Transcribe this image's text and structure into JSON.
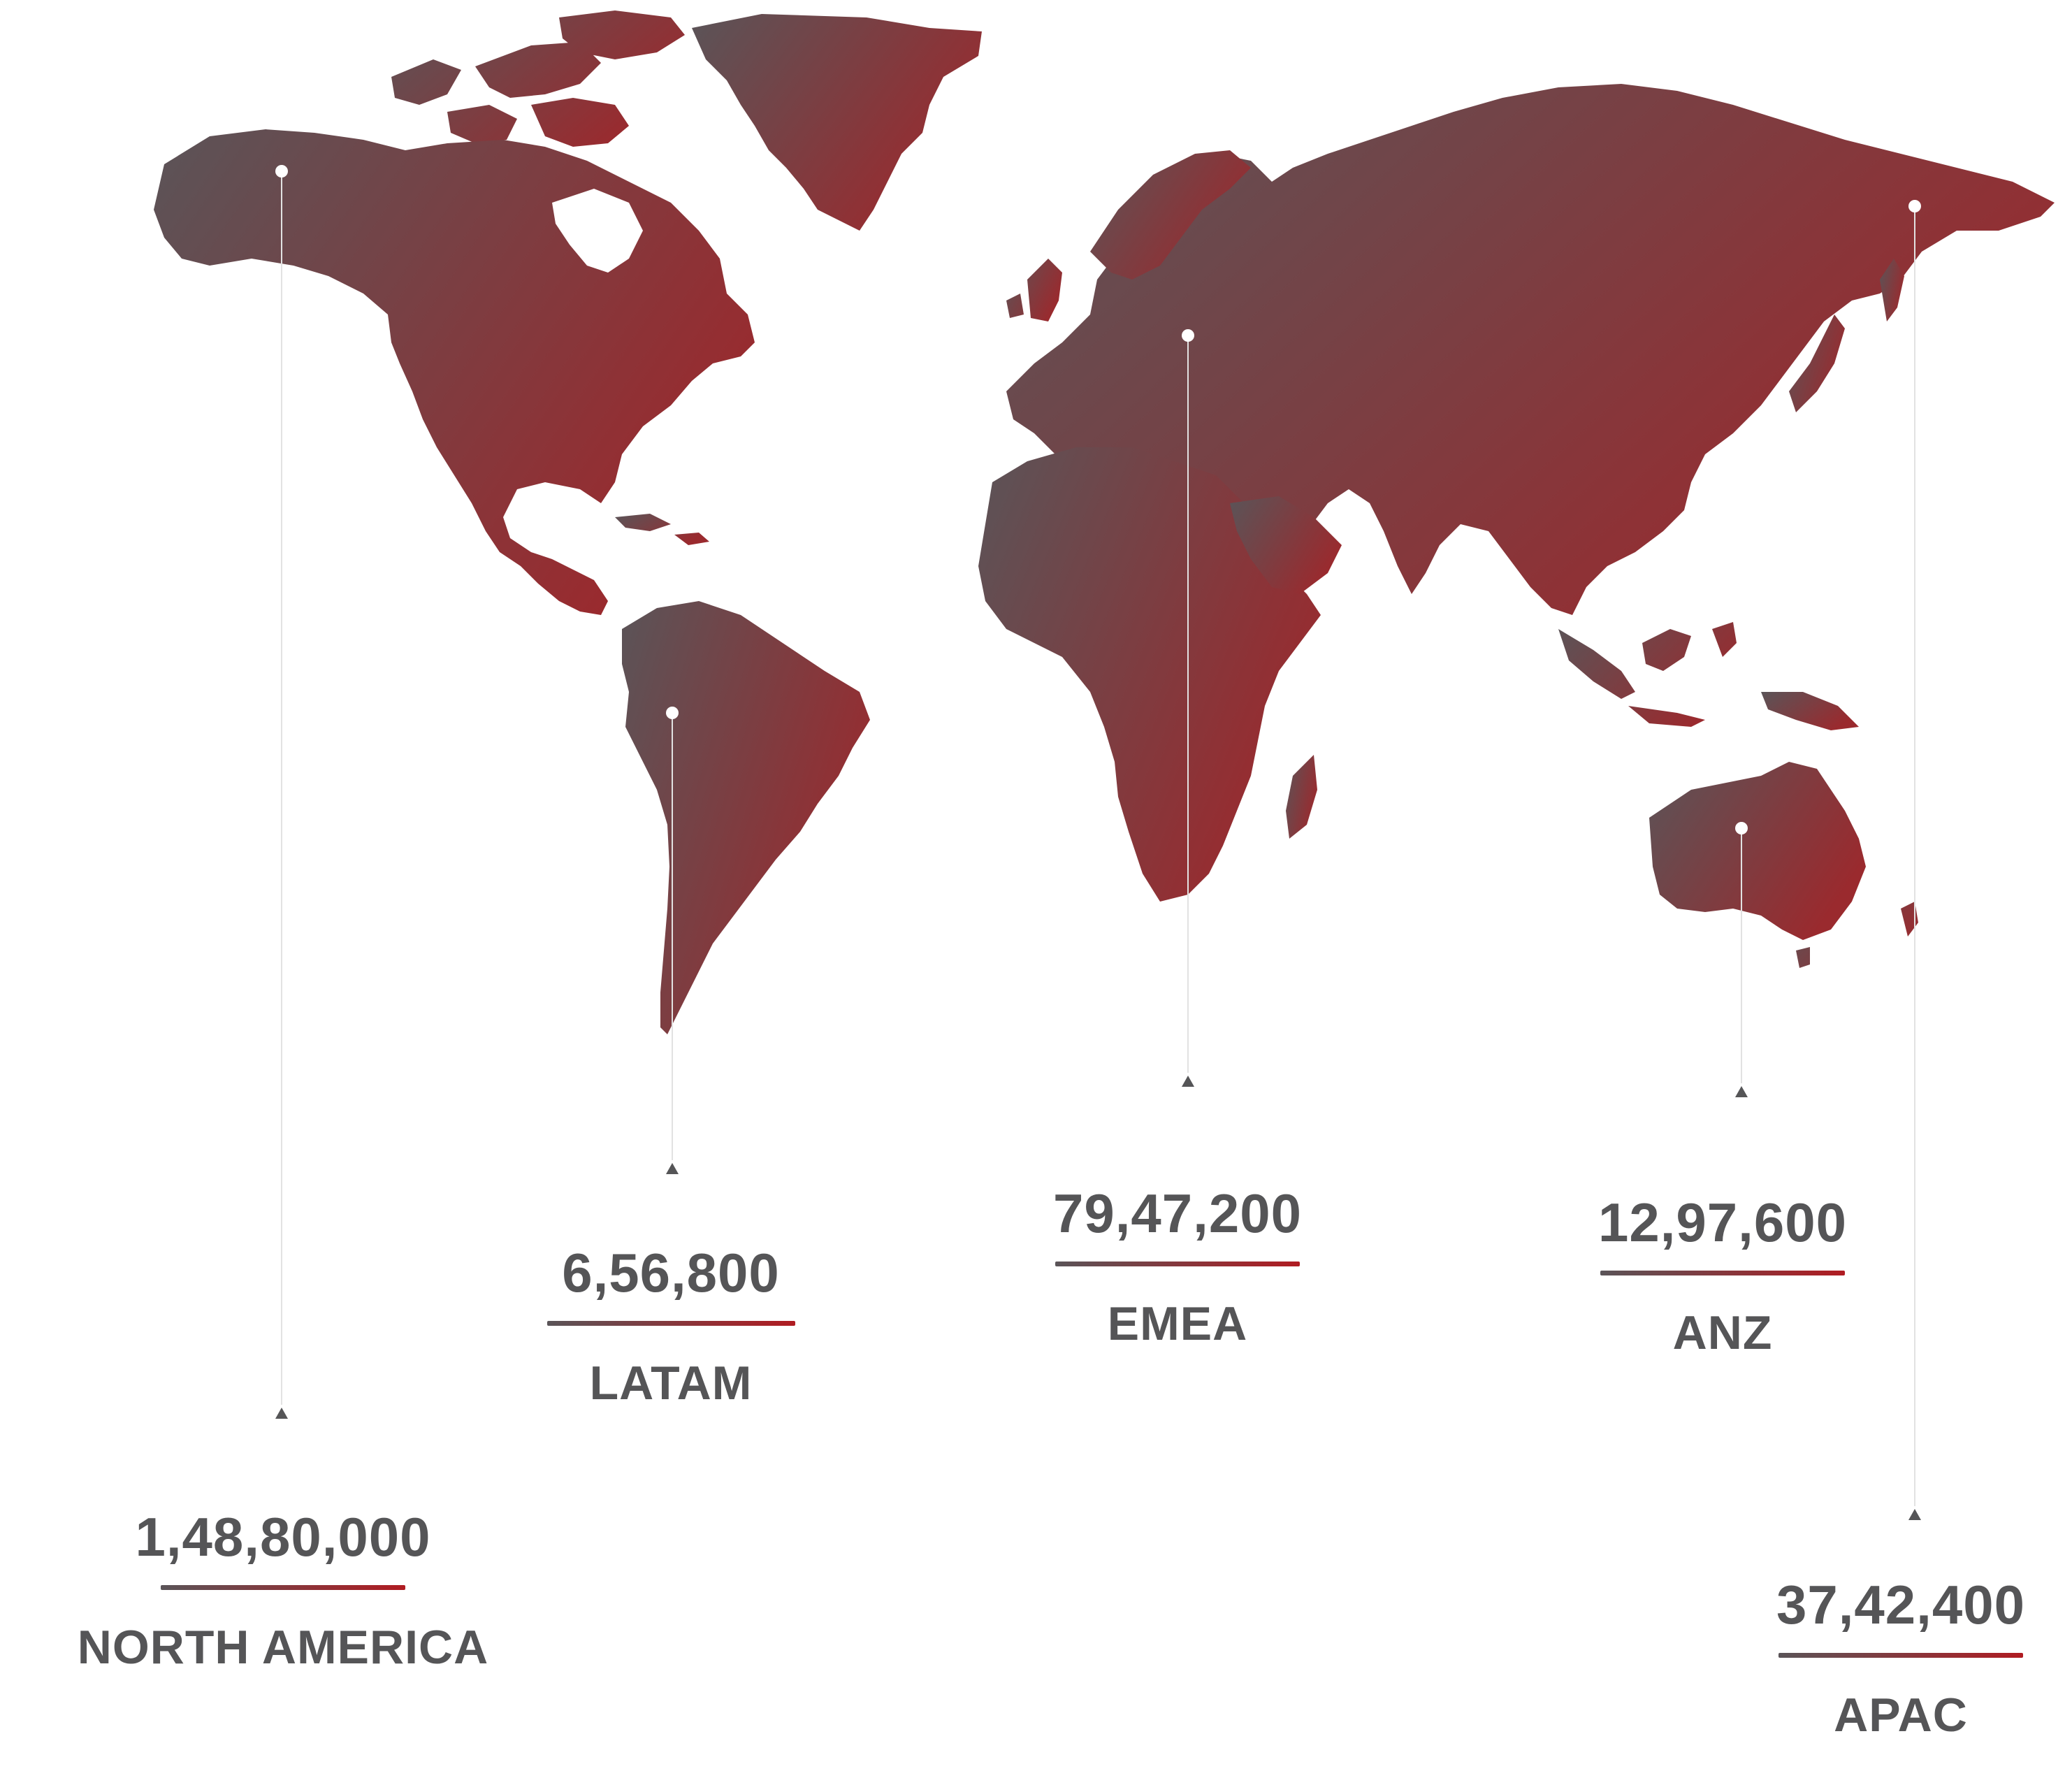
{
  "map": {
    "colors": {
      "gradient_start": "#5a5458",
      "gradient_end": "#9a2a2e",
      "text": "#555557",
      "underline_end": "#b01c22",
      "leader_line": "#e2e2e2",
      "marker": "#ffffff"
    }
  },
  "regions": [
    {
      "id": "north-america",
      "name": "NORTH AMERICA",
      "value": "1,48,80,000"
    },
    {
      "id": "latam",
      "name": "LATAM",
      "value": "6,56,800"
    },
    {
      "id": "emea",
      "name": "EMEA",
      "value": "79,47,200"
    },
    {
      "id": "anz",
      "name": "ANZ",
      "value": "12,97,600"
    },
    {
      "id": "apac",
      "name": "APAC",
      "value": "37,42,400"
    }
  ]
}
